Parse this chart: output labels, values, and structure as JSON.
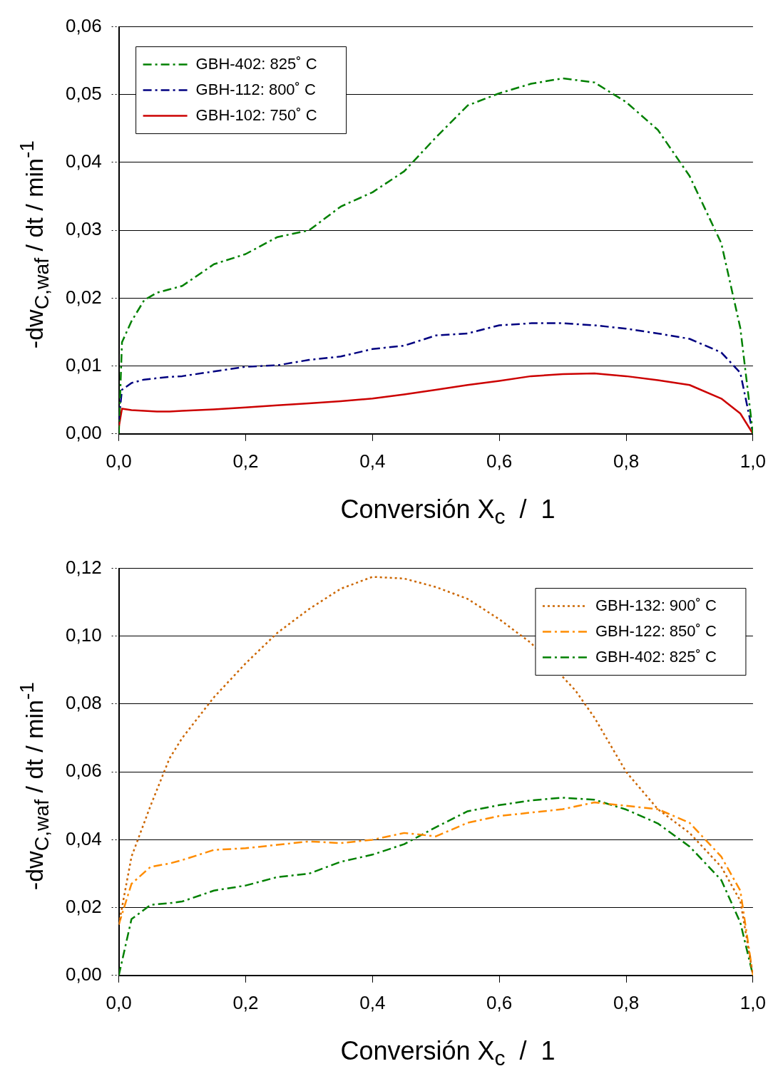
{
  "chart_data": [
    {
      "type": "line",
      "xlabel": "Conversión X$_{c}$  /  1",
      "ylabel": "-dw$_{C,waf}$ / dt / min$^{-1}$",
      "xlim": [
        0,
        1
      ],
      "ylim": [
        0,
        0.06
      ],
      "xticks": [
        {
          "value": 0,
          "label": "0,0"
        },
        {
          "value": 0.2,
          "label": "0,2"
        },
        {
          "value": 0.4,
          "label": "0,4"
        },
        {
          "value": 0.6,
          "label": "0,6"
        },
        {
          "value": 0.8,
          "label": "0,8"
        },
        {
          "value": 1,
          "label": "1,0"
        }
      ],
      "yticks": [
        {
          "value": 0,
          "label": "0,00"
        },
        {
          "value": 0.01,
          "label": "0,01"
        },
        {
          "value": 0.02,
          "label": "0,02"
        },
        {
          "value": 0.03,
          "label": "0,03"
        },
        {
          "value": 0.04,
          "label": "0,04"
        },
        {
          "value": 0.05,
          "label": "0,05"
        },
        {
          "value": 0.06,
          "label": "0,06"
        }
      ],
      "grid": "y",
      "legend": "top left",
      "marker": "none",
      "x": [
        0,
        0.005,
        0.02,
        0.04,
        0.06,
        0.08,
        0.1,
        0.15,
        0.2,
        0.25,
        0.3,
        0.35,
        0.4,
        0.45,
        0.5,
        0.55,
        0.6,
        0.65,
        0.7,
        0.75,
        0.8,
        0.85,
        0.9,
        0.95,
        0.98,
        1
      ],
      "series": [
        {
          "name": "GBH-402: 825˚ C",
          "color": "#008000",
          "line_style": "dashed",
          "values": [
            0,
            0.0135,
            0.0166,
            0.0197,
            0.0208,
            0.0213,
            0.0218,
            0.025,
            0.0265,
            0.029,
            0.03,
            0.0335,
            0.0356,
            0.0387,
            0.0437,
            0.0484,
            0.0502,
            0.0516,
            0.0524,
            0.0518,
            0.0489,
            0.0448,
            0.038,
            0.0281,
            0.0156,
            0
          ]
        },
        {
          "name": "GBH-112: 800˚ C",
          "color": "#000080",
          "line_style": "dashed",
          "values": [
            0.002,
            0.0065,
            0.0075,
            0.008,
            0.0082,
            0.0084,
            0.0085,
            0.0092,
            0.0099,
            0.0101,
            0.0109,
            0.0114,
            0.0125,
            0.013,
            0.0145,
            0.0148,
            0.016,
            0.0163,
            0.0163,
            0.016,
            0.0155,
            0.0148,
            0.014,
            0.012,
            0.009,
            0
          ]
        },
        {
          "name": "GBH-102: 750˚ C",
          "color": "#cc0000",
          "line_style": "solid",
          "values": [
            0.001,
            0.0037,
            0.0035,
            0.0034,
            0.0033,
            0.0033,
            0.0034,
            0.0036,
            0.0039,
            0.0042,
            0.0045,
            0.0048,
            0.0052,
            0.0058,
            0.0065,
            0.0072,
            0.0078,
            0.0085,
            0.0088,
            0.0089,
            0.0085,
            0.0079,
            0.0072,
            0.0052,
            0.003,
            0
          ]
        }
      ]
    },
    {
      "type": "line",
      "xlabel": "Conversión X$_{c}$  /  1",
      "ylabel": "-dw$_{C,waf}$ / dt / min$^{-1}$",
      "xlim": [
        0,
        1
      ],
      "ylim": [
        0,
        0.12
      ],
      "xticks": [
        {
          "value": 0,
          "label": "0,0"
        },
        {
          "value": 0.2,
          "label": "0,2"
        },
        {
          "value": 0.4,
          "label": "0,4"
        },
        {
          "value": 0.6,
          "label": "0,6"
        },
        {
          "value": 0.8,
          "label": "0,8"
        },
        {
          "value": 1,
          "label": "1,0"
        }
      ],
      "yticks": [
        {
          "value": 0,
          "label": "0,00"
        },
        {
          "value": 0.02,
          "label": "0,02"
        },
        {
          "value": 0.04,
          "label": "0,04"
        },
        {
          "value": 0.06,
          "label": "0,06"
        },
        {
          "value": 0.08,
          "label": "0,08"
        },
        {
          "value": 0.1,
          "label": "0,10"
        },
        {
          "value": 0.12,
          "label": "0,12"
        }
      ],
      "grid": "y",
      "legend": "top right",
      "marker": "none",
      "x": [
        0,
        0.02,
        0.05,
        0.08,
        0.1,
        0.15,
        0.2,
        0.25,
        0.3,
        0.35,
        0.4,
        0.45,
        0.5,
        0.55,
        0.6,
        0.65,
        0.7,
        0.75,
        0.8,
        0.85,
        0.9,
        0.95,
        0.98,
        1
      ],
      "series": [
        {
          "name": "GBH-132: 900˚ C",
          "color": "#cc6600",
          "line_style": "dotted",
          "x": [
            0,
            0.02,
            0.05,
            0.08,
            0.1,
            0.15,
            0.2,
            0.25,
            0.3,
            0.35,
            0.4,
            0.45,
            0.5,
            0.55,
            0.6,
            0.65,
            0.72,
            0.75,
            0.8,
            0.85,
            0.9,
            0.95,
            0.98,
            1
          ],
          "values": [
            0.015,
            0.035,
            0.05,
            0.064,
            0.07,
            0.082,
            0.092,
            0.101,
            0.108,
            0.114,
            0.1175,
            0.117,
            0.1145,
            0.111,
            0.105,
            0.098,
            0.084,
            0.076,
            0.06,
            0.049,
            0.042,
            0.032,
            0.022,
            0
          ]
        },
        {
          "name": "GBH-122: 850˚ C",
          "color": "#ff8c00",
          "line_style": "dashed",
          "values": [
            0.015,
            0.027,
            0.032,
            0.033,
            0.034,
            0.037,
            0.0375,
            0.0385,
            0.0395,
            0.039,
            0.04,
            0.042,
            0.041,
            0.045,
            0.047,
            0.048,
            0.049,
            0.051,
            0.05,
            0.049,
            0.045,
            0.035,
            0.025,
            0
          ]
        },
        {
          "name": "GBH-402: 825˚ C",
          "color": "#008000",
          "line_style": "dashed",
          "values": [
            0,
            0.0166,
            0.0208,
            0.0213,
            0.0218,
            0.025,
            0.0265,
            0.029,
            0.03,
            0.0335,
            0.0356,
            0.0387,
            0.0437,
            0.0484,
            0.0502,
            0.0516,
            0.0524,
            0.0518,
            0.0489,
            0.0448,
            0.038,
            0.0281,
            0.0156,
            0
          ]
        }
      ]
    }
  ]
}
